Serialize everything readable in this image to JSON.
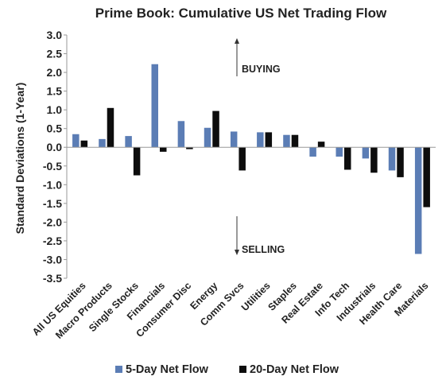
{
  "chart_data": {
    "type": "bar",
    "title": "Prime Book: Cumulative US Net Trading Flow",
    "ylabel": "Standard Deviations (1-Year)",
    "xlabel": "",
    "ylim": [
      -3.5,
      3.0
    ],
    "yticks": [
      "3.0",
      "2.5",
      "2.0",
      "1.5",
      "1.0",
      "0.5",
      "0.0",
      "-0.5",
      "-1.0",
      "-1.5",
      "-2.0",
      "-2.5",
      "-3.0",
      "-3.5"
    ],
    "grid": false,
    "legend_position": "bottom",
    "categories": [
      "All US Equities",
      "Macro Products",
      "Single Stocks",
      "Financials",
      "Consumer Disc",
      "Energy",
      "Comm Svcs",
      "Utilities",
      "Staples",
      "Real Estate",
      "Info Tech",
      "Industrials",
      "Health Care",
      "Materials"
    ],
    "series": [
      {
        "name": "5-Day Net Flow",
        "color": "#5b7db5",
        "values": [
          0.35,
          0.22,
          0.3,
          2.22,
          0.7,
          0.52,
          0.42,
          0.4,
          0.33,
          -0.25,
          -0.25,
          -0.3,
          -0.62,
          -2.85
        ]
      },
      {
        "name": "20-Day Net Flow",
        "color": "#0d0d0d",
        "values": [
          0.18,
          1.05,
          -0.75,
          -0.12,
          -0.05,
          0.97,
          -0.62,
          0.4,
          0.33,
          0.15,
          -0.6,
          -0.68,
          -0.8,
          -1.6
        ]
      }
    ],
    "annotations": [
      {
        "text": "BUYING",
        "direction": "up"
      },
      {
        "text": "SELLING",
        "direction": "down"
      }
    ]
  }
}
